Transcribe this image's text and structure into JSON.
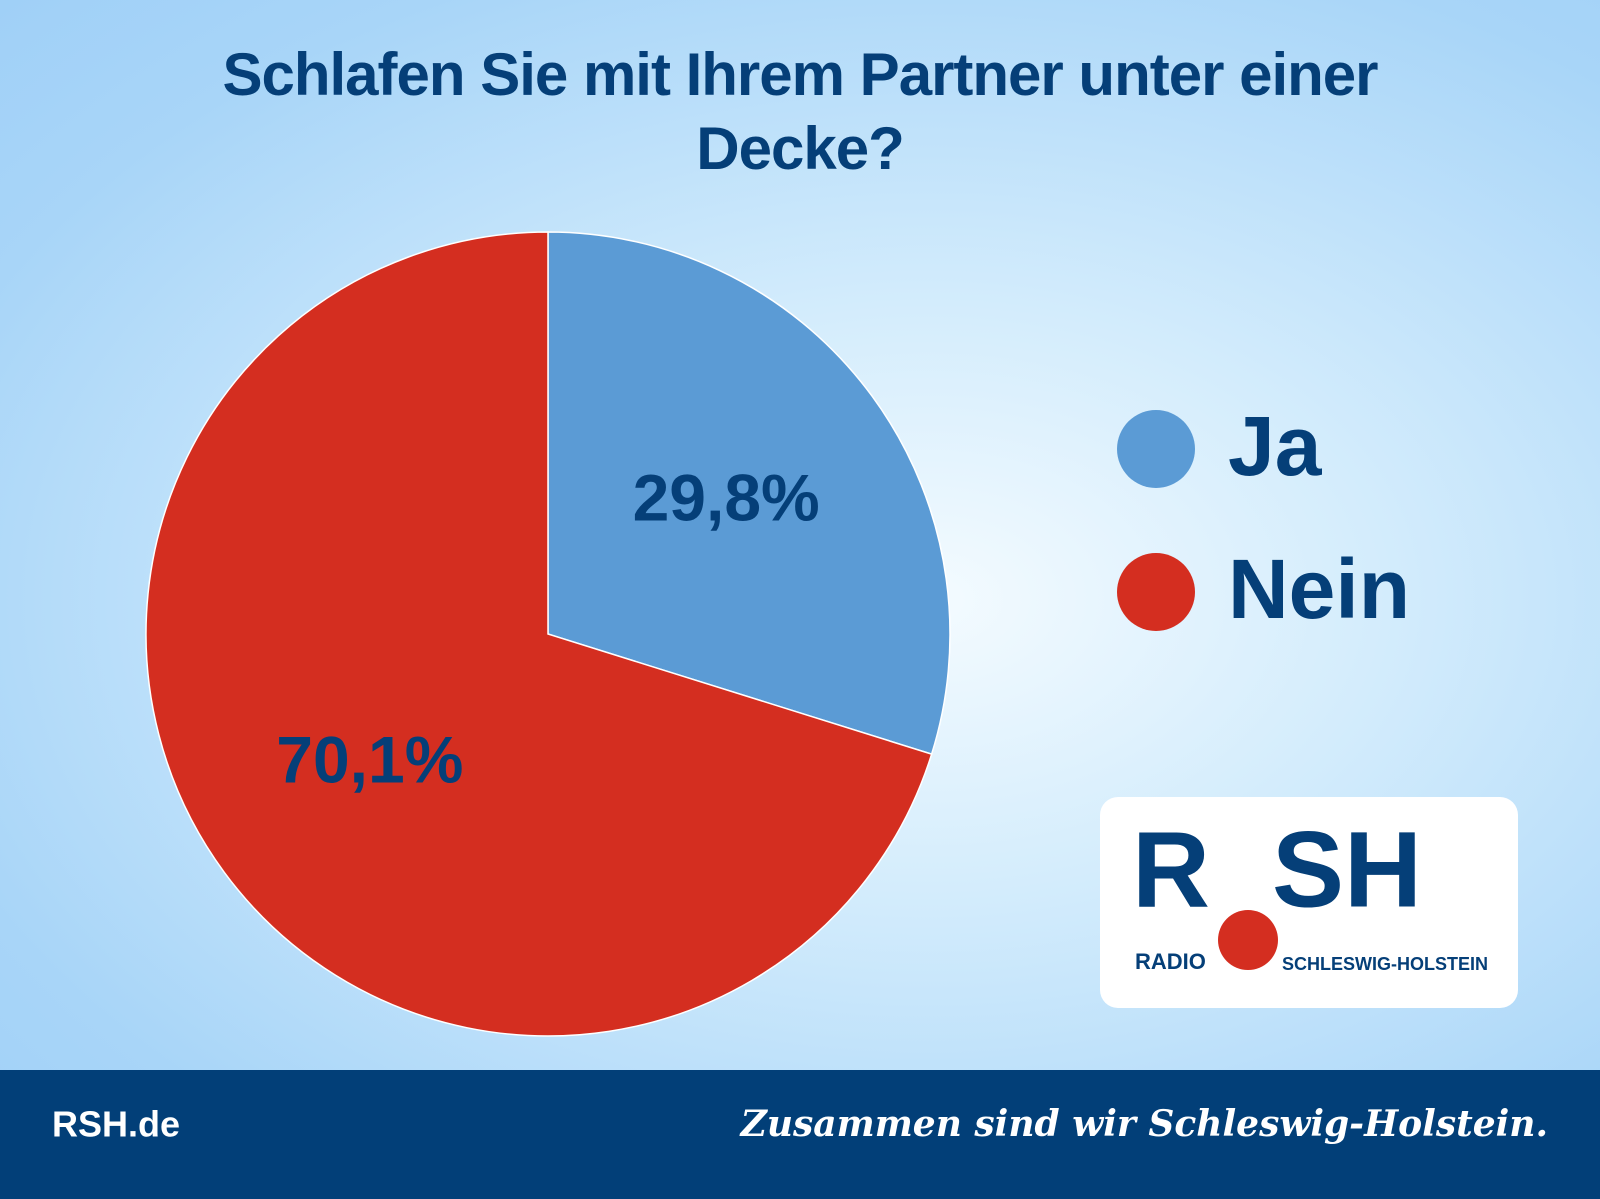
{
  "chart_data": {
    "type": "pie",
    "title": "Schlafen Sie mit Ihrem Partner unter einer Decke?",
    "categories": [
      "Ja",
      "Nein"
    ],
    "values": [
      29.8,
      70.1
    ],
    "value_labels": [
      "29,8%",
      "70,1%"
    ],
    "colors": [
      "#5b9bd5",
      "#d42e20"
    ]
  },
  "logo": {
    "left": "R",
    "right": "SH",
    "radio": "RADIO",
    "region": "SCHLESWIG-HOLSTEIN"
  },
  "footer": {
    "site": "RSH.de",
    "slogan": "Zusammen sind wir Schleswig-Holstein."
  }
}
